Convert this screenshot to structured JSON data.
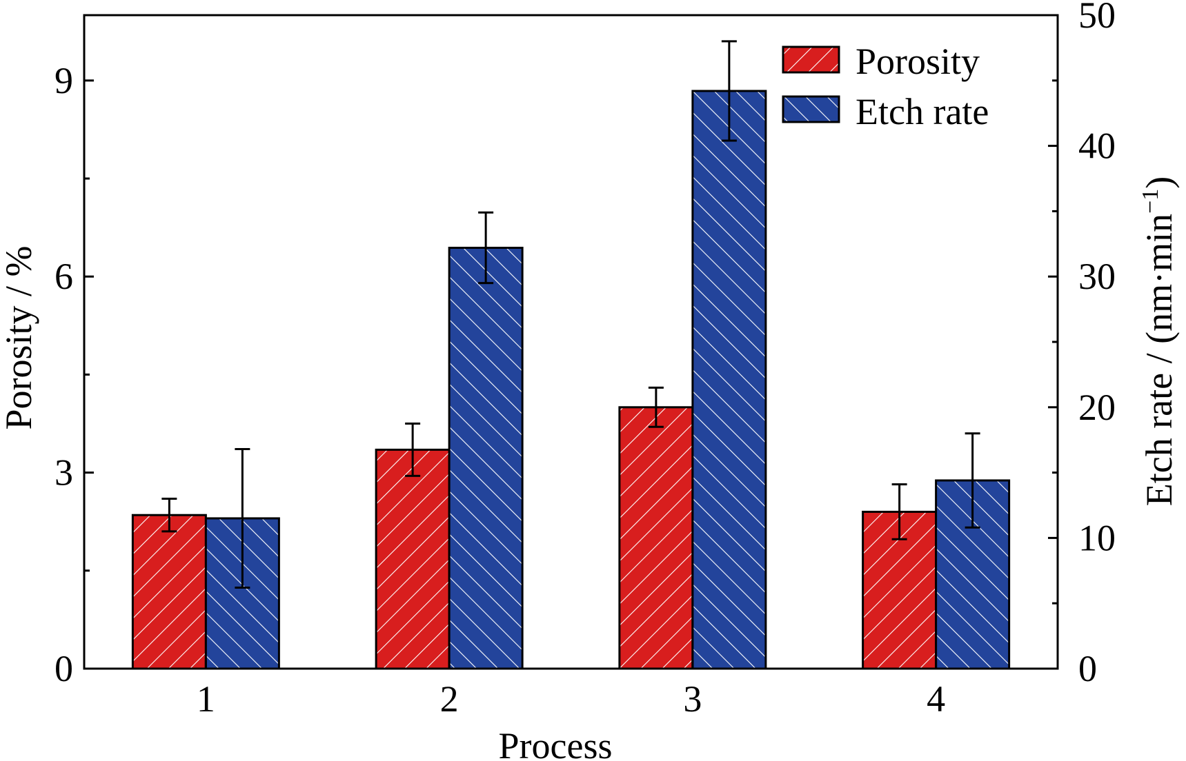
{
  "chart_data": {
    "type": "bar",
    "categories": [
      "1",
      "2",
      "3",
      "4"
    ],
    "xlabel": "Process",
    "ylabel_left": "Porosity / %",
    "ylabel_right_main": "Etch rate / (nm·min",
    "ylabel_right_sup": "−1",
    "ylabel_right_close": ")",
    "ylim_left": [
      0,
      10
    ],
    "yticks_left": [
      "0",
      "3",
      "6",
      "9"
    ],
    "yticks_left_values": [
      0,
      3,
      6,
      9
    ],
    "ylim_right": [
      0,
      50
    ],
    "yticks_right": [
      "0",
      "10",
      "20",
      "30",
      "40",
      "50"
    ],
    "yticks_right_values": [
      0,
      10,
      20,
      30,
      40,
      50
    ],
    "legend_position": "top-right",
    "grid": false,
    "series": [
      {
        "name": "Porosity",
        "axis": "left",
        "color": "#d81e1e",
        "hatch": "forward",
        "values": [
          2.35,
          3.35,
          4.0,
          2.4
        ],
        "error": [
          0.25,
          0.4,
          0.3,
          0.42
        ]
      },
      {
        "name": "Etch rate",
        "axis": "right",
        "color": "#23449b",
        "hatch": "backward",
        "values": [
          11.5,
          32.2,
          44.2,
          14.4
        ],
        "error": [
          5.3,
          2.7,
          3.8,
          3.6
        ]
      }
    ]
  }
}
